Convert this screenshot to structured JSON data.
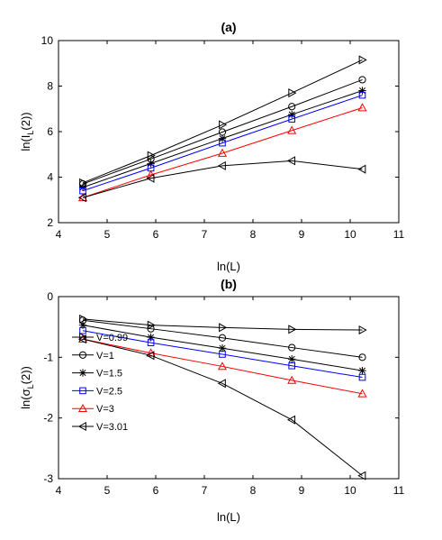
{
  "chart_data": [
    {
      "type": "line",
      "title": "(a)",
      "xlabel": "ln(L)",
      "ylabel_parts": [
        "ln(I",
        "L",
        "(2))"
      ],
      "xlim": [
        4,
        11
      ],
      "ylim": [
        2,
        10
      ],
      "xticks": [
        4,
        5,
        6,
        7,
        8,
        9,
        10,
        11
      ],
      "yticks": [
        2,
        4,
        6,
        8,
        10
      ],
      "grid": false,
      "x": [
        4.5,
        5.9,
        7.37,
        8.8,
        10.25
      ],
      "series": [
        {
          "name": "V=0.99",
          "marker": "triangle-right",
          "color": "#000000",
          "values": [
            3.75,
            4.95,
            6.3,
            7.7,
            9.15
          ]
        },
        {
          "name": "V=1",
          "marker": "circle",
          "color": "#000000",
          "values": [
            3.7,
            4.8,
            5.98,
            7.1,
            8.28
          ]
        },
        {
          "name": "V=1.5",
          "marker": "asterisk",
          "color": "#000000",
          "values": [
            3.55,
            4.6,
            5.7,
            6.75,
            7.8
          ]
        },
        {
          "name": "V=2.5",
          "marker": "square",
          "color": "#0000ff",
          "values": [
            3.4,
            4.4,
            5.5,
            6.55,
            7.6
          ]
        },
        {
          "name": "V=3",
          "marker": "triangle-up",
          "color": "#ff0000",
          "values": [
            3.1,
            4.1,
            5.05,
            6.05,
            7.05
          ]
        },
        {
          "name": "V=3.01",
          "marker": "triangle-left",
          "color": "#000000",
          "values": [
            3.1,
            3.95,
            4.5,
            4.72,
            4.35
          ]
        }
      ]
    },
    {
      "type": "line",
      "title": "(b)",
      "xlabel": "ln(L)",
      "ylabel_parts": [
        "ln(",
        "σ",
        "L",
        "(2))"
      ],
      "xlim": [
        4,
        11
      ],
      "ylim": [
        -3,
        0
      ],
      "xticks": [
        4,
        5,
        6,
        7,
        8,
        9,
        10,
        11
      ],
      "yticks": [
        -3,
        -2,
        -1,
        0
      ],
      "grid": false,
      "legend_position": "lower-left",
      "x": [
        4.5,
        5.9,
        7.37,
        8.8,
        10.25
      ],
      "series": [
        {
          "name": "V=0.99",
          "marker": "triangle-right",
          "color": "#000000",
          "values": [
            -0.37,
            -0.47,
            -0.51,
            -0.54,
            -0.55
          ]
        },
        {
          "name": "V=1",
          "marker": "circle",
          "color": "#000000",
          "values": [
            -0.39,
            -0.53,
            -0.68,
            -0.84,
            -1.0
          ]
        },
        {
          "name": "V=1.5",
          "marker": "asterisk",
          "color": "#000000",
          "values": [
            -0.47,
            -0.67,
            -0.85,
            -1.03,
            -1.22
          ]
        },
        {
          "name": "V=2.5",
          "marker": "square",
          "color": "#0000ff",
          "values": [
            -0.56,
            -0.76,
            -0.95,
            -1.14,
            -1.33
          ]
        },
        {
          "name": "V=3",
          "marker": "triangle-up",
          "color": "#ff0000",
          "values": [
            -0.7,
            -0.93,
            -1.15,
            -1.38,
            -1.6
          ]
        },
        {
          "name": "V=3.01",
          "marker": "triangle-left",
          "color": "#000000",
          "values": [
            -0.7,
            -0.97,
            -1.43,
            -2.03,
            -2.95
          ]
        }
      ]
    }
  ]
}
